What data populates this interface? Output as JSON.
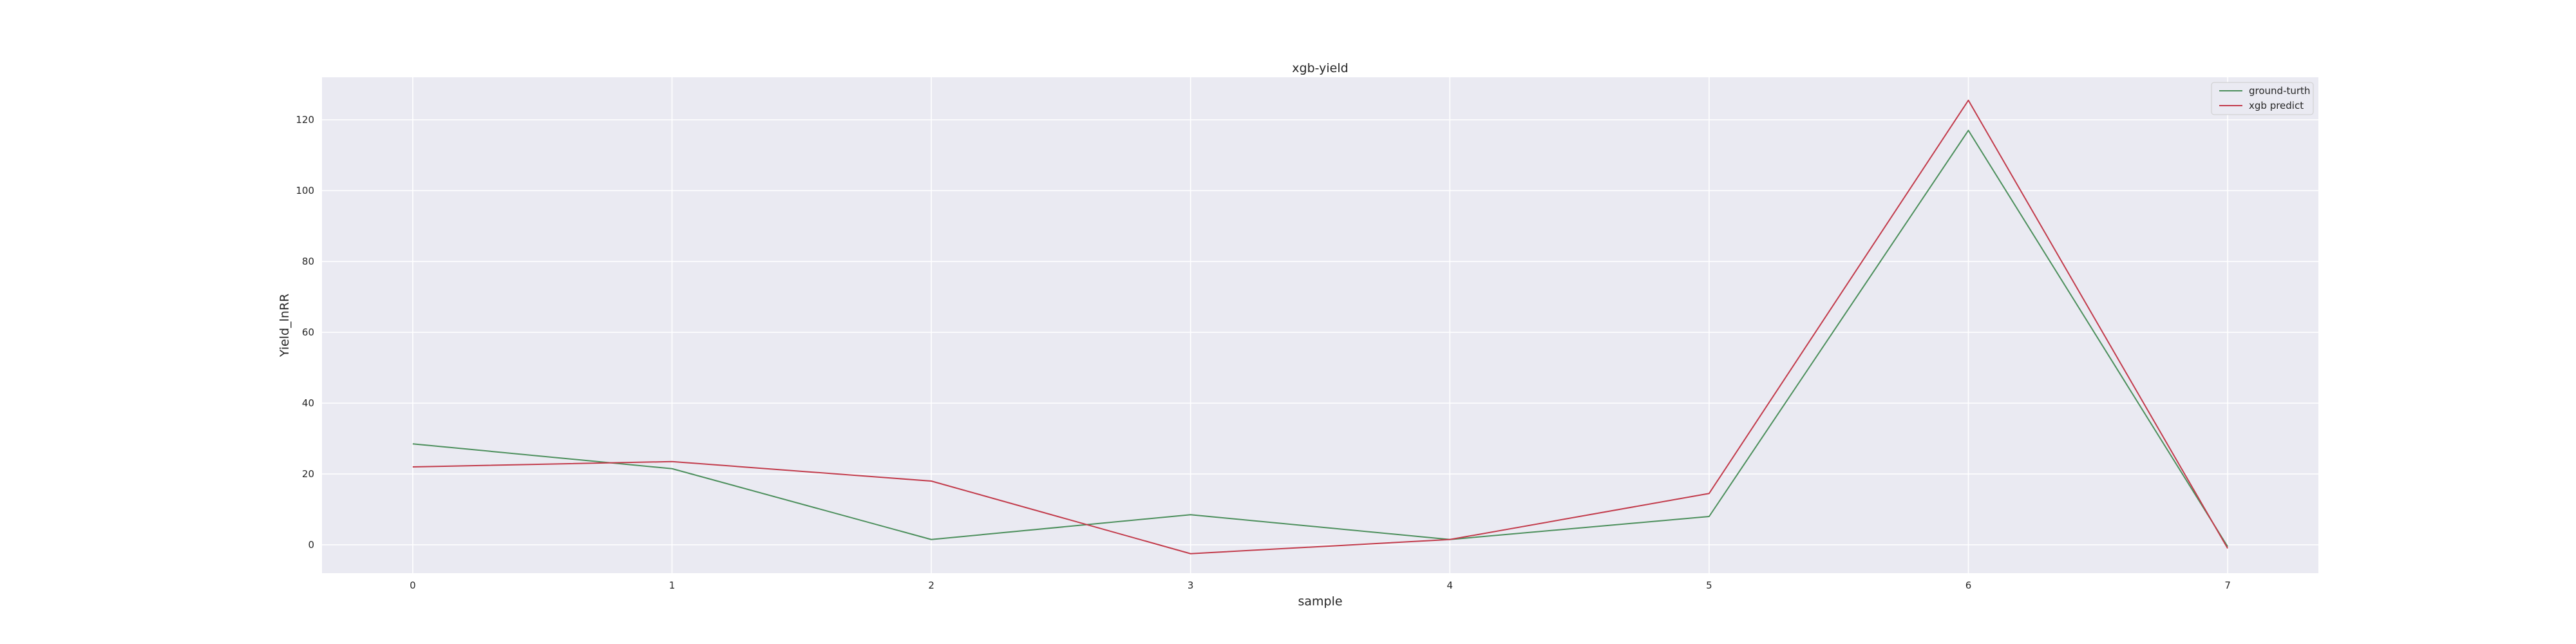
{
  "chart_data": {
    "type": "line",
    "title": "xgb-yield",
    "xlabel": "sample",
    "ylabel": "Yield_lnRR",
    "x": [
      0,
      1,
      2,
      3,
      4,
      5,
      6,
      7
    ],
    "xticks": [
      "0",
      "1",
      "2",
      "3",
      "4",
      "5",
      "6",
      "7"
    ],
    "yticks": [
      "0",
      "20",
      "40",
      "60",
      "80",
      "100",
      "120"
    ],
    "xlim": [
      -0.35,
      7.35
    ],
    "ylim": [
      -8,
      132
    ],
    "grid": true,
    "legend_position": "top-right",
    "series": [
      {
        "name": "ground-turth",
        "color": "#4c8f5c",
        "values": [
          28.5,
          21.5,
          1.5,
          8.5,
          1.5,
          8.0,
          117.0,
          -0.5
        ]
      },
      {
        "name": "xgb predict",
        "color": "#c23b4b",
        "values": [
          22.0,
          23.5,
          18.0,
          -2.5,
          1.5,
          14.5,
          125.5,
          -1.0
        ]
      }
    ]
  }
}
